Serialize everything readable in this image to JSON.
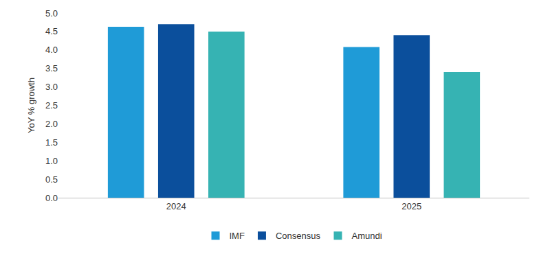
{
  "chart_data": {
    "type": "bar",
    "categories": [
      "2024",
      "2025"
    ],
    "series": [
      {
        "name": "IMF",
        "color": "#1f9bd7",
        "values": [
          4.63,
          4.08
        ]
      },
      {
        "name": "Consensus",
        "color": "#0b4f9c",
        "values": [
          4.7,
          4.4
        ]
      },
      {
        "name": "Amundi",
        "color": "#36b3b3",
        "values": [
          4.5,
          3.4
        ]
      }
    ],
    "y_label": "YoY % growth",
    "ylim": [
      0,
      5
    ],
    "yticks": [
      {
        "value": 0,
        "label": "0.0"
      },
      {
        "value": 0.5,
        "label": "0.5"
      },
      {
        "value": 1,
        "label": "1.0"
      },
      {
        "value": 1.5,
        "label": "1.5"
      },
      {
        "value": 2,
        "label": "2.0"
      },
      {
        "value": 2.5,
        "label": "2.5"
      },
      {
        "value": 3,
        "label": "3.0"
      },
      {
        "value": 3.5,
        "label": "3.5"
      },
      {
        "value": 4,
        "label": "4.0"
      },
      {
        "value": 4.5,
        "label": "4.5"
      },
      {
        "value": 5,
        "label": "5.0"
      }
    ],
    "grid": false,
    "legend": "bottom"
  }
}
